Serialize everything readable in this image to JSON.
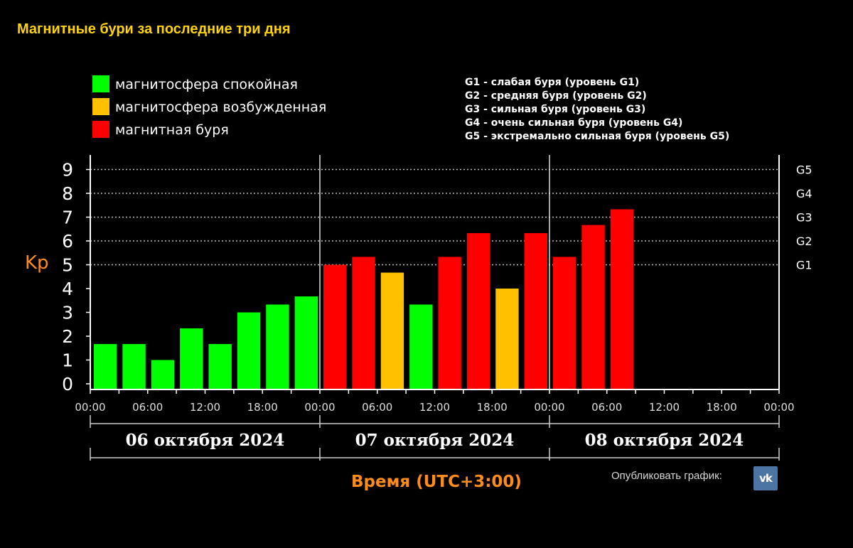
{
  "header": {
    "title": "Магнитные бури за последние три дня"
  },
  "legend_left": [
    {
      "label": "магнитосфера спокойная",
      "color": "#00ff00"
    },
    {
      "label": "магнитосфера возбужденная",
      "color": "#ffc000"
    },
    {
      "label": "магнитная буря",
      "color": "#ff0000"
    }
  ],
  "legend_right": [
    "G1 - слабая буря (уровень G1)",
    "G2 - средняя буря (уровень G2)",
    "G3 - сильная буря (уровень G3)",
    "G4 - очень сильная буря (уровень G4)",
    "G5 - экстремально сильная буря (уровень G5)"
  ],
  "chart_data": {
    "type": "bar",
    "title": "Магнитные бури за последние три дня",
    "ylabel": "Kp",
    "xlabel": "Время (UTC+3:00)",
    "ylim": [
      0,
      9
    ],
    "yticks": [
      "0",
      "1",
      "2",
      "3",
      "4",
      "5",
      "6",
      "7",
      "8",
      "9"
    ],
    "g_levels": [
      {
        "label": "G1",
        "kp": 5
      },
      {
        "label": "G2",
        "kp": 6
      },
      {
        "label": "G3",
        "kp": 7
      },
      {
        "label": "G4",
        "kp": 8
      },
      {
        "label": "G5",
        "kp": 9
      }
    ],
    "xticks": [
      "00:00",
      "06:00",
      "12:00",
      "18:00",
      "00:00",
      "06:00",
      "12:00",
      "18:00",
      "00:00",
      "06:00",
      "12:00",
      "18:00",
      "00:00"
    ],
    "days": [
      "06 октября 2024",
      "07 октября 2024",
      "08 октября 2024"
    ],
    "slots_per_day": 8,
    "values": [
      1.67,
      1.67,
      1.0,
      2.33,
      1.67,
      3.0,
      3.33,
      3.67,
      5.0,
      5.33,
      4.67,
      3.33,
      5.33,
      6.33,
      4.0,
      6.33,
      5.33,
      6.67,
      7.33
    ],
    "colors": [
      "#00ff00",
      "#00ff00",
      "#00ff00",
      "#00ff00",
      "#00ff00",
      "#00ff00",
      "#00ff00",
      "#00ff00",
      "#ff0000",
      "#ff0000",
      "#ffc000",
      "#00ff00",
      "#ff0000",
      "#ff0000",
      "#ffc000",
      "#ff0000",
      "#ff0000",
      "#ff0000",
      "#ff0000"
    ],
    "grid": true
  },
  "footer": {
    "publish_label": "Опубликовать график:",
    "vk_label": "vk"
  }
}
